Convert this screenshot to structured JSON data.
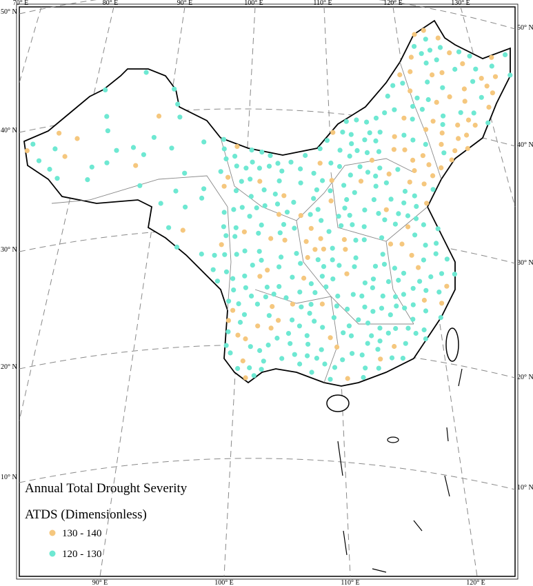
{
  "map": {
    "title": "Annual Total Drought Severity",
    "subtitle": "ATDS (Dimensionless)",
    "legend": [
      {
        "label": "130 - 140",
        "color": "#f5c77e"
      },
      {
        "label": "120 - 130",
        "color": "#6ee8d2"
      }
    ],
    "top_labels": [
      "70° E",
      "80° E",
      "90° E",
      "100° E",
      "110° E",
      "120° E",
      "130° E"
    ],
    "bottom_labels": [
      "90° E",
      "100° E",
      "110° E",
      "120° E"
    ],
    "left_labels": [
      "50° N",
      "40° N",
      "30° N",
      "20° N",
      "10° N"
    ],
    "right_labels": [
      "50° N",
      "40° N",
      "30° N",
      "20° N",
      "10° N"
    ]
  }
}
